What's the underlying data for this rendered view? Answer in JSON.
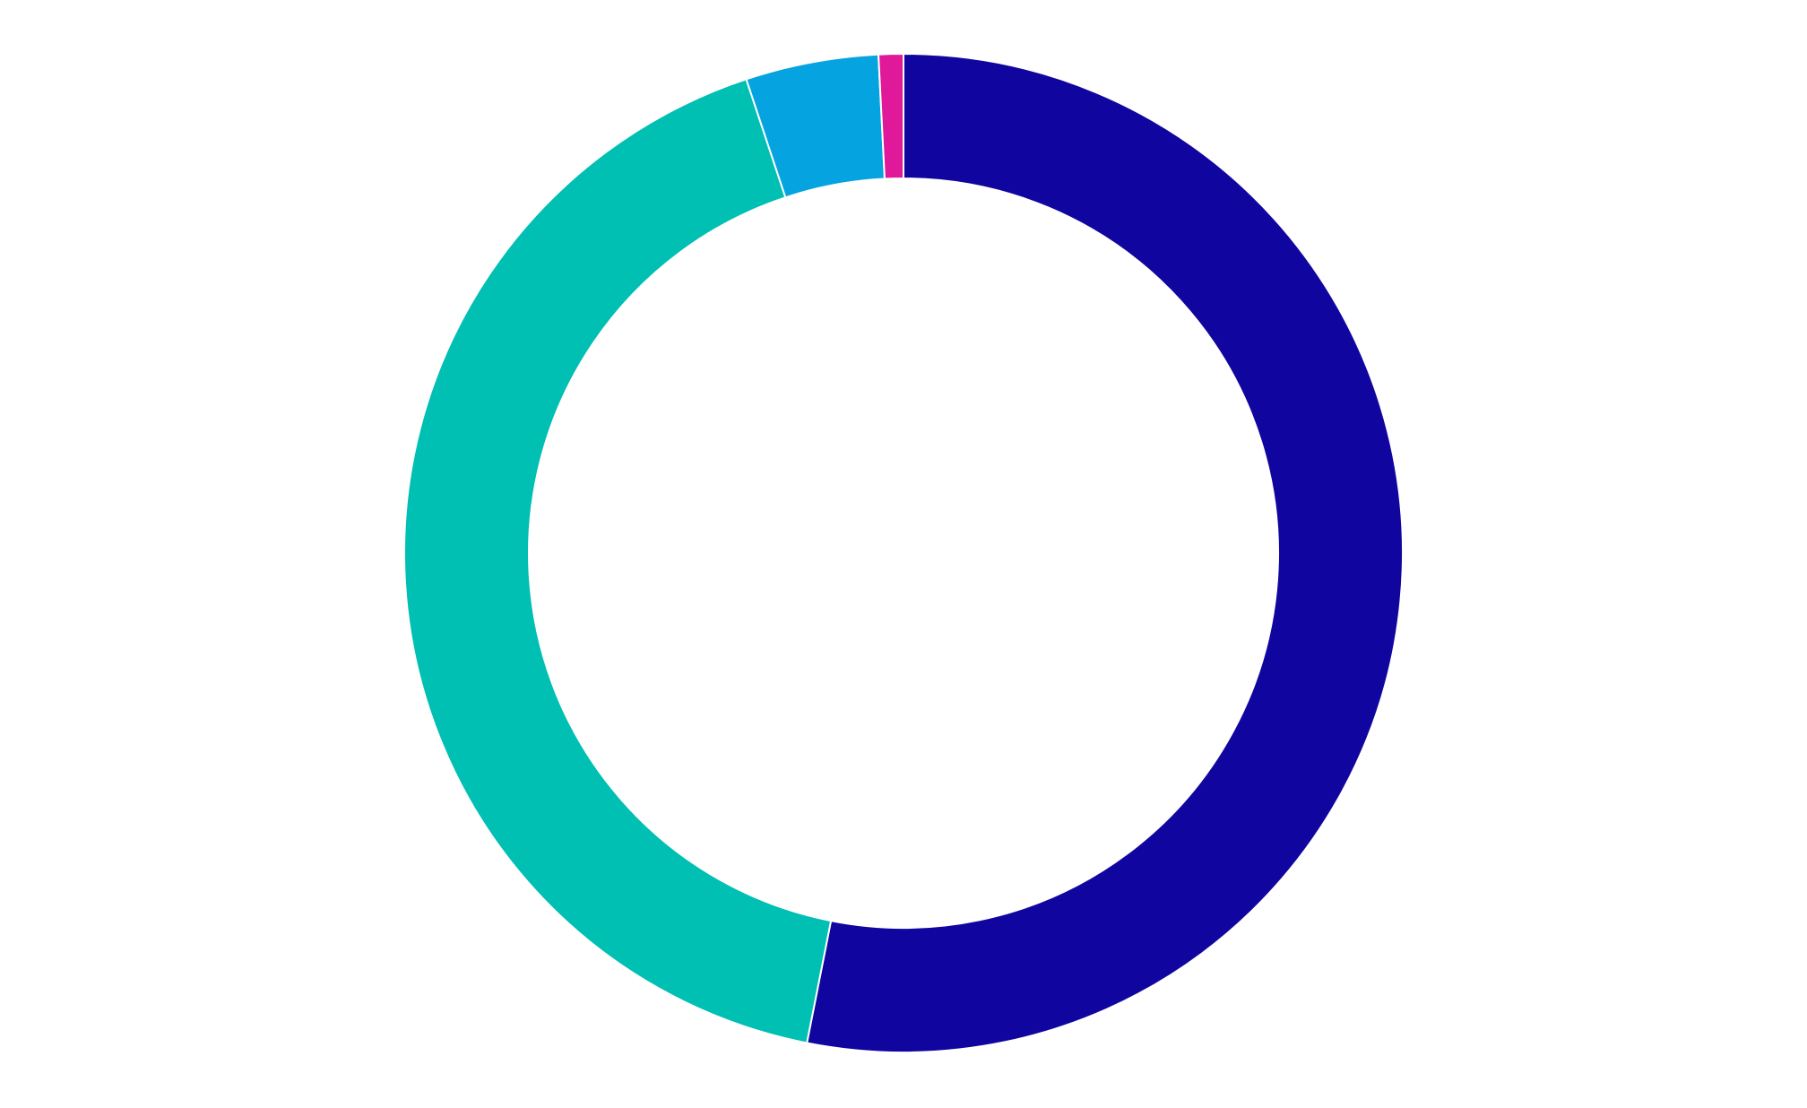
{
  "chart_data": {
    "type": "pie",
    "variant": "donut",
    "start_angle": "top",
    "direction": "clockwise",
    "legend": "none",
    "slices": [
      {
        "value": 53.1,
        "color": "#10069f"
      },
      {
        "value": 41.8,
        "color": "#00bfb3"
      },
      {
        "value": 4.3,
        "color": "#05a3e0"
      },
      {
        "value": 0.8,
        "color": "#e0189a"
      }
    ],
    "separator_color": "#ffffff"
  }
}
